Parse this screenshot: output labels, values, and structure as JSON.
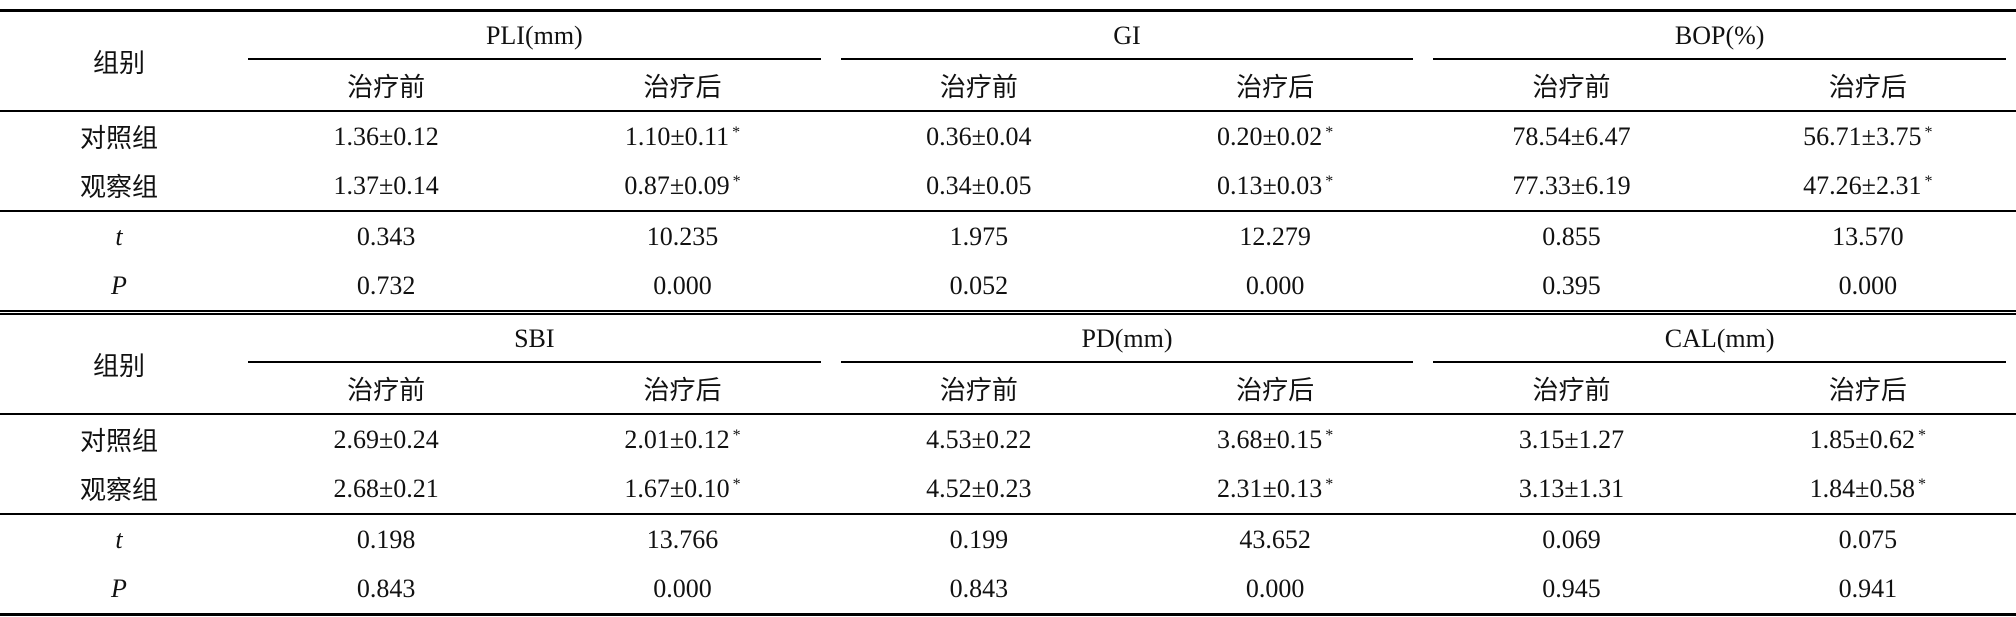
{
  "tables": [
    {
      "group_label": "组别",
      "groups": [
        "PLI(mm)",
        "GI",
        "BOP(%)"
      ],
      "subheaders": [
        "治疗前",
        "治疗后",
        "治疗前",
        "治疗后",
        "治疗前",
        "治疗后"
      ],
      "rows": [
        [
          "对照组",
          "1.36±0.12",
          "1.10±0.11*",
          "0.36±0.04",
          "0.20±0.02*",
          "78.54±6.47",
          "56.71±3.75*"
        ],
        [
          "观察组",
          "1.37±0.14",
          "0.87±0.09*",
          "0.34±0.05",
          "0.13±0.03*",
          "77.33±6.19",
          "47.26±2.31*"
        ],
        [
          "t",
          "0.343",
          "10.235",
          "1.975",
          "12.279",
          "0.855",
          "13.570"
        ],
        [
          "P",
          "0.732",
          "0.000",
          "0.052",
          "0.000",
          "0.395",
          "0.000"
        ]
      ]
    },
    {
      "group_label": "组别",
      "groups": [
        "SBI",
        "PD(mm)",
        "CAL(mm)"
      ],
      "subheaders": [
        "治疗前",
        "治疗后",
        "治疗前",
        "治疗后",
        "治疗前",
        "治疗后"
      ],
      "rows": [
        [
          "对照组",
          "2.69±0.24",
          "2.01±0.12*",
          "4.53±0.22",
          "3.68±0.15*",
          "3.15±1.27",
          "1.85±0.62*"
        ],
        [
          "观察组",
          "2.68±0.21",
          "1.67±0.10*",
          "4.52±0.23",
          "2.31±0.13*",
          "3.13±1.31",
          "1.84±0.58*"
        ],
        [
          "t",
          "0.198",
          "13.766",
          "0.199",
          "43.652",
          "0.069",
          "0.075"
        ],
        [
          "P",
          "0.843",
          "0.000",
          "0.843",
          "0.000",
          "0.945",
          "0.941"
        ]
      ]
    }
  ]
}
